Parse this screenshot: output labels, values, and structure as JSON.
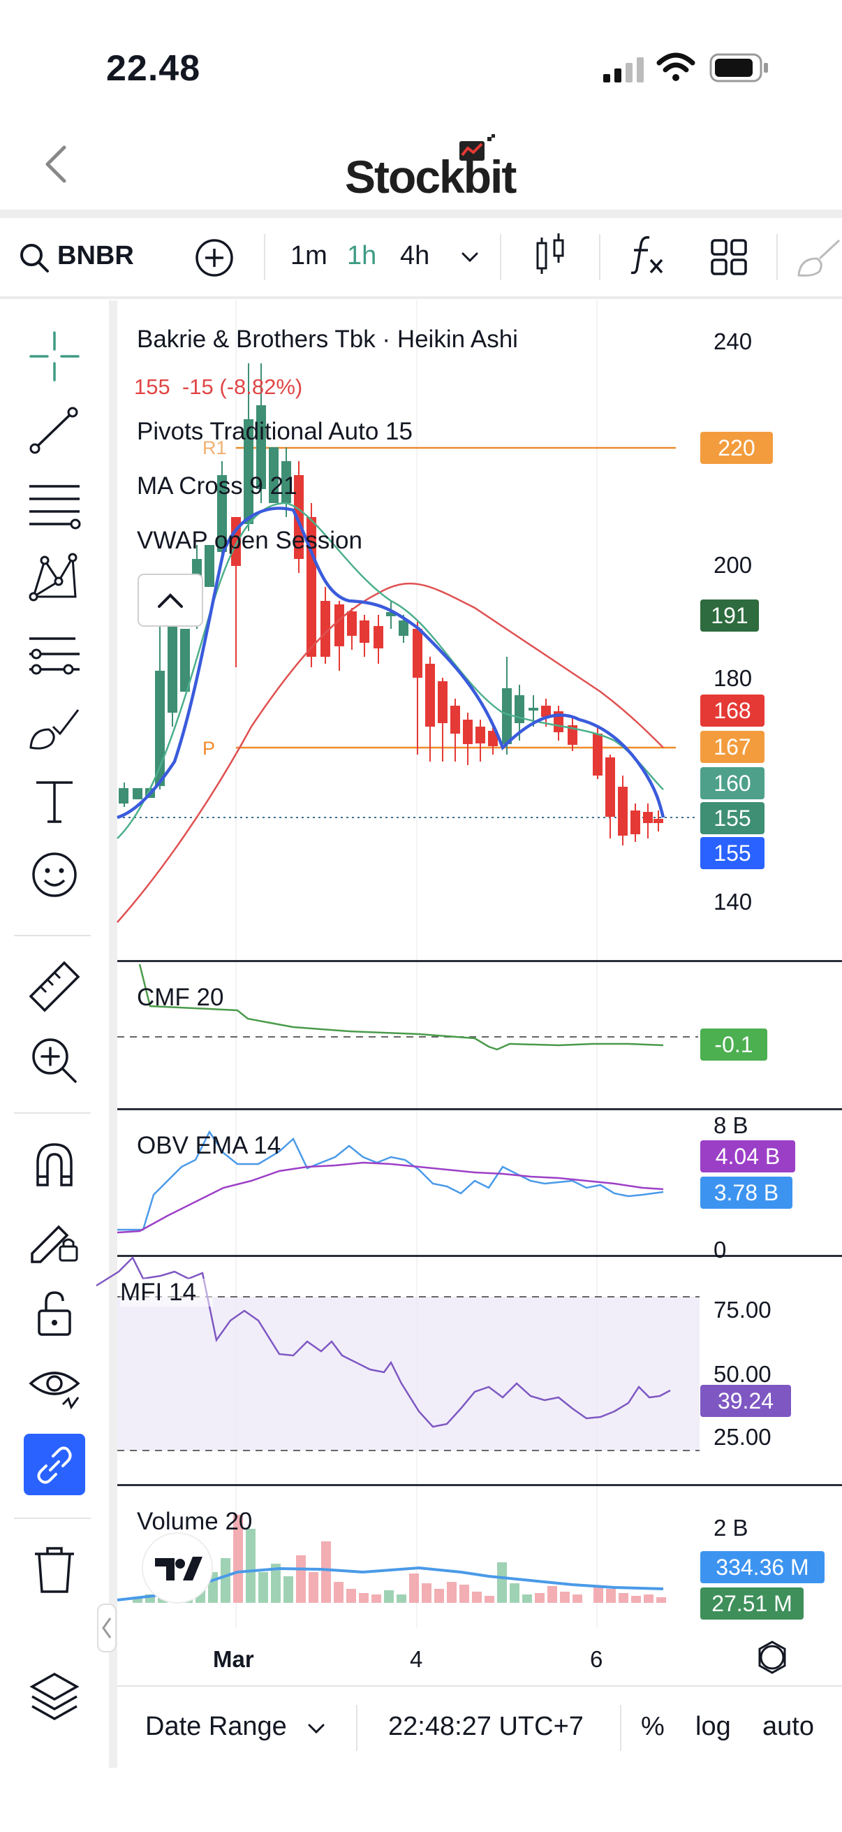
{
  "status_bar": {
    "time": "22.48"
  },
  "nav": {
    "brand": "Stockbit"
  },
  "toolbar": {
    "symbol": "BNBR",
    "intervals": [
      "1m",
      "1h",
      "4h"
    ],
    "active_interval": "1h"
  },
  "chart_header": {
    "title": "Bakrie & Brothers Tbk · Heikin Ashi",
    "price_change": "155  -15 (-8.82%)",
    "indicator_1": "Pivots Traditional Auto 15",
    "indicator_2": "MA Cross 9 21",
    "indicator_3": "VWAP open Session"
  },
  "pivot_labels": {
    "r1": "R1",
    "p": "P"
  },
  "main_axis": {
    "ticks": [
      "240",
      "200",
      "180",
      "140"
    ]
  },
  "main_tags": [
    {
      "text": "220",
      "color": "#f39c3d"
    },
    {
      "text": "191",
      "color": "#2e6b3e"
    },
    {
      "text": "168",
      "color": "#e53935"
    },
    {
      "text": "167",
      "color": "#f39c3d"
    },
    {
      "text": "160",
      "color": "#4ea08a"
    },
    {
      "text": "155",
      "color": "#3e8f74"
    },
    {
      "text": "155",
      "color": "#2962ff"
    }
  ],
  "cmf": {
    "label": "CMF 20",
    "tag": "-0.1",
    "tag_color": "#4caf50"
  },
  "obv": {
    "label": "OBV EMA 14",
    "axis_top": "8 B",
    "axis_bottom": "0",
    "tag1": "4.04 B",
    "tag1_color": "#9c3fc7",
    "tag2": "3.78 B",
    "tag2_color": "#3d94f0"
  },
  "mfi": {
    "label": "MFI 14",
    "axis": [
      "75.00",
      "50.00",
      "25.00"
    ],
    "tag": "39.24",
    "tag_color": "#7e57c2"
  },
  "volume": {
    "label": "Volume 20",
    "axis_top": "2 B",
    "tag1": "334.36 M",
    "tag1_color": "#3d94f0",
    "tag2": "27.51 M",
    "tag2_color": "#3e8f5a"
  },
  "time_axis": {
    "labels": [
      "Mar",
      "4",
      "6"
    ]
  },
  "bottom_bar": {
    "date_range": "Date Range",
    "time": "22:48:27 UTC+7",
    "percent": "%",
    "log": "log",
    "auto": "auto"
  },
  "colors": {
    "accent": "#2962ff",
    "up": "#3e8f74",
    "down": "#e53935",
    "pivot": "#f08a2c",
    "interval_active": "#3e9b84"
  }
}
